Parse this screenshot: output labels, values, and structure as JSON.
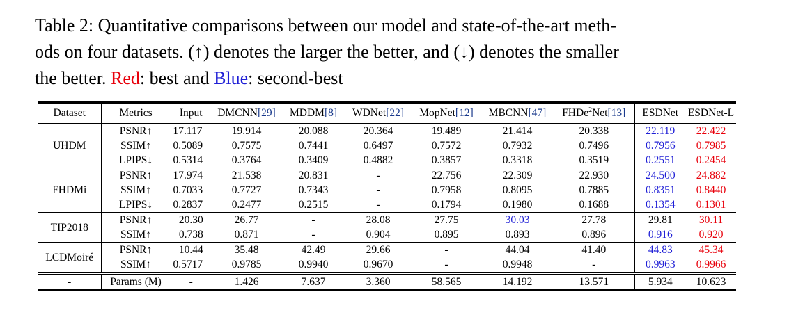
{
  "caption": {
    "part1": "Table 2: Quantitative comparisons between our model and state-of-the-art meth-",
    "part2": "ods on four datasets. (↑) denotes the larger the better, and (↓) denotes the smaller",
    "part3": "the better. ",
    "red_word": "Red",
    "part4": ": best and ",
    "blue_word": "Blue",
    "part5": ": second-best"
  },
  "headers": {
    "dataset": "Dataset",
    "metrics": "Metrics",
    "input": "Input",
    "dmcnn": "DMCNN",
    "dmcnn_ref": "[29]",
    "mddm": "MDDM",
    "mddm_ref": "[8]",
    "wdnet": "WDNet",
    "wdnet_ref": "[22]",
    "mopnet": "MopNet",
    "mopnet_ref": "[12]",
    "mbcnn": "MBCNN",
    "mbcnn_ref": "[47]",
    "fhde_a": "FHDe",
    "fhde_sup": "2",
    "fhde_b": "Net",
    "fhde_ref": "[13]",
    "esdnet": "ESDNet",
    "esdnetl": "ESDNet-L"
  },
  "groups": {
    "uhdm": {
      "name": "UHDM",
      "rows": [
        [
          "PSNR↑",
          "17.117",
          "19.914",
          "20.088",
          "20.364",
          "19.489",
          "21.414",
          "20.338",
          "22.119",
          "22.422"
        ],
        [
          "SSIM↑",
          "0.5089",
          "0.7575",
          "0.7441",
          "0.6497",
          "0.7572",
          "0.7932",
          "0.7496",
          "0.7956",
          "0.7985"
        ],
        [
          "LPIPS↓",
          "0.5314",
          "0.3764",
          "0.3409",
          "0.4882",
          "0.3857",
          "0.3318",
          "0.3519",
          "0.2551",
          "0.2454"
        ]
      ]
    },
    "fhdmi": {
      "name": "FHDMi",
      "rows": [
        [
          "PSNR↑",
          "17.974",
          "21.538",
          "20.831",
          "-",
          "22.756",
          "22.309",
          "22.930",
          "24.500",
          "24.882"
        ],
        [
          "SSIM↑",
          "0.7033",
          "0.7727",
          "0.7343",
          "-",
          "0.7958",
          "0.8095",
          "0.7885",
          "0.8351",
          "0.8440"
        ],
        [
          "LPIPS↓",
          "0.2837",
          "0.2477",
          "0.2515",
          "-",
          "0.1794",
          "0.1980",
          "0.1688",
          "0.1354",
          "0.1301"
        ]
      ]
    },
    "tip": {
      "name": "TIP2018",
      "rows": [
        [
          "PSNR↑",
          "20.30",
          "26.77",
          "-",
          "28.08",
          "27.75",
          "30.03",
          "27.78",
          "29.81",
          "30.11"
        ],
        [
          "SSIM↑",
          "0.738",
          "0.871",
          "-",
          "0.904",
          "0.895",
          "0.893",
          "0.896",
          "0.916",
          "0.920"
        ]
      ]
    },
    "lcd": {
      "name": "LCDMoiré",
      "rows": [
        [
          "PSNR↑",
          "10.44",
          "35.48",
          "42.49",
          "29.66",
          "-",
          "44.04",
          "41.40",
          "44.83",
          "45.34"
        ],
        [
          "SSIM↑",
          "0.5717",
          "0.9785",
          "0.9940",
          "0.9670",
          "-",
          "0.9948",
          "-",
          "0.9963",
          "0.9966"
        ]
      ]
    }
  },
  "params_row": [
    "-",
    "Params (M)",
    "-",
    "1.426",
    "7.637",
    "3.360",
    "58.565",
    "14.192",
    "13.571",
    "5.934",
    "10.623"
  ],
  "colors": {
    "best": "#e8000b",
    "second": "#1f1fd6",
    "ref": "#1a3a8c"
  }
}
